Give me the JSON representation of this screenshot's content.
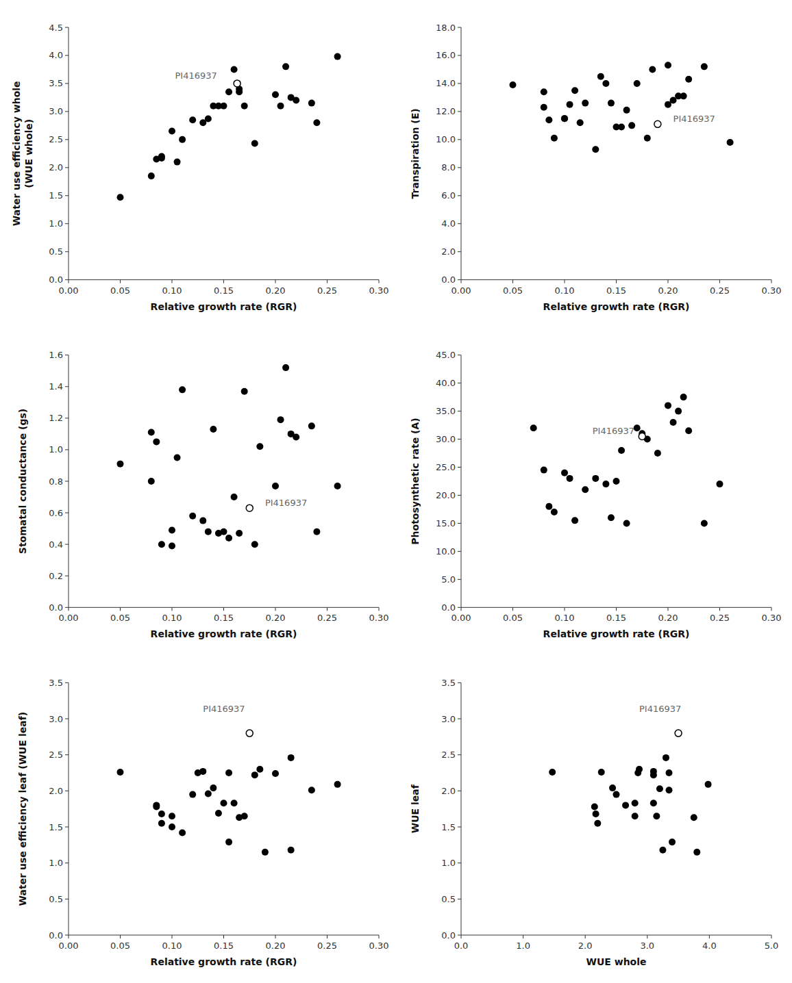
{
  "chart_data": [
    {
      "type": "scatter",
      "x_label": "Relative growth rate (RGR)",
      "y_label": "Water use efficiency whole\n(WUE whole)",
      "xlim": [
        0,
        0.3
      ],
      "ylim": [
        0,
        4.5
      ],
      "xticks": [
        {
          "value": 0,
          "label": "0.00"
        },
        0.05,
        {
          "value": 0.1,
          "label": "0.10"
        },
        0.15,
        {
          "value": 0.2,
          "label": "0.20"
        },
        0.25,
        {
          "value": 0.3,
          "label": "0.30"
        }
      ],
      "yticks": [
        {
          "value": 0,
          "label": "0.0"
        },
        0.5,
        {
          "value": 1,
          "label": "1.0"
        },
        1.5,
        {
          "value": 2,
          "label": "2.0"
        },
        2.5,
        {
          "value": 3,
          "label": "3.0"
        },
        3.5,
        {
          "value": 4,
          "label": "4.0"
        },
        4.5
      ],
      "grid": false,
      "series": [
        {
          "color": "black",
          "marker": "circle",
          "x": [
            0.05,
            0.08,
            0.085,
            0.09,
            0.09,
            0.1,
            0.105,
            0.11,
            0.12,
            0.13,
            0.135,
            0.14,
            0.145,
            0.15,
            0.155,
            0.16,
            0.165,
            0.165,
            0.17,
            0.18,
            0.2,
            0.205,
            0.21,
            0.215,
            0.22,
            0.235,
            0.24,
            0.26
          ],
          "values": [
            1.47,
            1.85,
            2.15,
            2.2,
            2.17,
            2.65,
            2.1,
            2.5,
            2.85,
            2.8,
            2.87,
            3.1,
            3.1,
            3.1,
            3.35,
            3.75,
            3.35,
            3.4,
            3.1,
            2.43,
            3.3,
            3.1,
            3.8,
            3.25,
            3.2,
            3.15,
            2.8,
            3.98
          ]
        },
        {
          "color": "black",
          "marker": "open_circle",
          "x": [
            0.163
          ],
          "values": [
            3.5
          ]
        }
      ],
      "annotations": [
        {
          "text": "PI416937",
          "x": 0.103,
          "y": 3.55,
          "color": "#666666"
        }
      ]
    },
    {
      "type": "scatter",
      "x_label": "Relative growth rate (RGR)",
      "y_label": "Transpiration (E)",
      "xlim": [
        0,
        0.3
      ],
      "ylim": [
        0,
        18.0
      ],
      "xticks": [
        {
          "value": 0,
          "label": "0.00"
        },
        0.05,
        {
          "value": 0.1,
          "label": "0.10"
        },
        0.15,
        {
          "value": 0.2,
          "label": "0.20"
        },
        0.25,
        {
          "value": 0.3,
          "label": "0.30"
        }
      ],
      "yticks": [
        {
          "value": 0,
          "label": "0.0"
        },
        {
          "value": 2,
          "label": "2.0"
        },
        {
          "value": 4,
          "label": "4.0"
        },
        {
          "value": 6,
          "label": "6.0"
        },
        {
          "value": 8,
          "label": "8.0"
        },
        {
          "value": 10,
          "label": "10.0"
        },
        {
          "value": 12,
          "label": "12.0"
        },
        {
          "value": 14,
          "label": "14.0"
        },
        {
          "value": 16,
          "label": "16.0"
        },
        {
          "value": 18,
          "label": "18.0"
        }
      ],
      "grid": false,
      "series": [
        {
          "color": "black",
          "marker": "circle",
          "x": [
            0.05,
            0.08,
            0.08,
            0.085,
            0.09,
            0.1,
            0.1,
            0.105,
            0.11,
            0.115,
            0.12,
            0.13,
            0.135,
            0.14,
            0.145,
            0.15,
            0.155,
            0.16,
            0.165,
            0.17,
            0.18,
            0.185,
            0.2,
            0.2,
            0.205,
            0.21,
            0.215,
            0.22,
            0.235,
            0.26
          ],
          "values": [
            13.9,
            13.4,
            12.3,
            11.4,
            10.1,
            11.5,
            11.5,
            12.5,
            13.5,
            11.2,
            12.6,
            9.3,
            14.5,
            14.0,
            12.6,
            10.9,
            10.9,
            12.1,
            11.0,
            14.0,
            10.1,
            15.0,
            12.5,
            15.3,
            12.8,
            13.1,
            13.1,
            14.3,
            15.2,
            9.8
          ]
        },
        {
          "color": "black",
          "marker": "open_circle",
          "x": [
            0.19
          ],
          "values": [
            11.1
          ]
        }
      ],
      "annotations": [
        {
          "text": "PI416937",
          "x": 0.205,
          "y": 11.1,
          "color": "#666666"
        }
      ]
    },
    {
      "type": "scatter",
      "x_label": "Relative growth rate (RGR)",
      "y_label": "Stomatal conductance (gs)",
      "xlim": [
        0,
        0.3
      ],
      "ylim": [
        0,
        1.6
      ],
      "xticks": [
        {
          "value": 0,
          "label": "0.00"
        },
        0.05,
        {
          "value": 0.1,
          "label": "0.10"
        },
        0.15,
        {
          "value": 0.2,
          "label": "0.20"
        },
        0.25,
        {
          "value": 0.3,
          "label": "0.30"
        }
      ],
      "yticks": [
        {
          "value": 0,
          "label": "0.0"
        },
        0.2,
        0.4,
        0.6,
        0.8,
        {
          "value": 1,
          "label": "1.0"
        },
        1.2,
        1.4,
        1.6
      ],
      "grid": false,
      "series": [
        {
          "color": "black",
          "marker": "circle",
          "x": [
            0.05,
            0.08,
            0.08,
            0.085,
            0.09,
            0.1,
            0.1,
            0.105,
            0.11,
            0.12,
            0.13,
            0.135,
            0.14,
            0.145,
            0.15,
            0.155,
            0.16,
            0.165,
            0.17,
            0.18,
            0.185,
            0.2,
            0.205,
            0.21,
            0.215,
            0.22,
            0.235,
            0.24,
            0.26
          ],
          "values": [
            0.91,
            1.11,
            0.8,
            1.05,
            0.4,
            0.49,
            0.39,
            0.95,
            1.38,
            0.58,
            0.55,
            0.48,
            1.13,
            0.47,
            0.48,
            0.44,
            0.7,
            0.47,
            1.37,
            0.4,
            1.02,
            0.77,
            1.19,
            1.52,
            1.1,
            1.08,
            1.15,
            0.48,
            0.77
          ]
        },
        {
          "color": "black",
          "marker": "open_circle",
          "x": [
            0.175
          ],
          "values": [
            0.63
          ]
        }
      ],
      "annotations": [
        {
          "text": "PI416937",
          "x": 0.19,
          "y": 0.63,
          "color": "#666666"
        }
      ]
    },
    {
      "type": "scatter",
      "x_label": "Relative growth rate (RGR)",
      "y_label": "Photosynthetic rate (A)",
      "xlim": [
        0,
        0.3
      ],
      "ylim": [
        0,
        45.0
      ],
      "xticks": [
        {
          "value": 0,
          "label": "0.00"
        },
        0.05,
        {
          "value": 0.1,
          "label": "0.10"
        },
        0.15,
        {
          "value": 0.2,
          "label": "0.20"
        },
        0.25,
        {
          "value": 0.3,
          "label": "0.30"
        }
      ],
      "yticks": [
        {
          "value": 0,
          "label": "0.0"
        },
        {
          "value": 5,
          "label": "5.0"
        },
        {
          "value": 10,
          "label": "10.0"
        },
        {
          "value": 15,
          "label": "15.0"
        },
        {
          "value": 20,
          "label": "20.0"
        },
        {
          "value": 25,
          "label": "25.0"
        },
        {
          "value": 30,
          "label": "30.0"
        },
        {
          "value": 35,
          "label": "35.0"
        },
        {
          "value": 40,
          "label": "40.0"
        },
        {
          "value": 45,
          "label": "45.0"
        }
      ],
      "grid": false,
      "series": [
        {
          "color": "black",
          "marker": "circle",
          "x": [
            0.07,
            0.08,
            0.085,
            0.09,
            0.1,
            0.105,
            0.11,
            0.12,
            0.13,
            0.14,
            0.145,
            0.15,
            0.155,
            0.16,
            0.17,
            0.175,
            0.18,
            0.19,
            0.2,
            0.205,
            0.21,
            0.215,
            0.22,
            0.235,
            0.25
          ],
          "values": [
            32.0,
            24.5,
            18.0,
            17.0,
            24.0,
            23.0,
            15.5,
            21.0,
            23.0,
            22.0,
            16.0,
            22.5,
            28.0,
            15.0,
            32.0,
            31.0,
            30.0,
            27.5,
            36.0,
            33.0,
            35.0,
            37.5,
            31.5,
            15.0,
            22.0
          ]
        },
        {
          "color": "black",
          "marker": "open_circle",
          "x": [
            0.175
          ],
          "values": [
            30.5
          ]
        }
      ],
      "annotations": [
        {
          "text": "PI416937",
          "x": 0.127,
          "y": 30.5,
          "color": "#666666"
        }
      ]
    },
    {
      "type": "scatter",
      "x_label": "Relative growth rate (RGR)",
      "y_label": "Water use efficiency leaf (WUE leaf)",
      "xlim": [
        0,
        0.3
      ],
      "ylim": [
        0,
        3.5
      ],
      "xticks": [
        {
          "value": 0,
          "label": "0.00"
        },
        0.05,
        {
          "value": 0.1,
          "label": "0.10"
        },
        0.15,
        {
          "value": 0.2,
          "label": "0.20"
        },
        0.25,
        {
          "value": 0.3,
          "label": "0.30"
        }
      ],
      "yticks": [
        {
          "value": 0,
          "label": "0.0"
        },
        0.5,
        {
          "value": 1,
          "label": "1.0"
        },
        1.5,
        {
          "value": 2,
          "label": "2.0"
        },
        2.5,
        {
          "value": 3,
          "label": "3.0"
        },
        3.5
      ],
      "grid": false,
      "series": [
        {
          "color": "black",
          "marker": "circle",
          "x": [
            0.05,
            0.085,
            0.085,
            0.09,
            0.09,
            0.1,
            0.1,
            0.11,
            0.12,
            0.125,
            0.13,
            0.135,
            0.14,
            0.145,
            0.15,
            0.155,
            0.155,
            0.16,
            0.165,
            0.17,
            0.175,
            0.18,
            0.185,
            0.19,
            0.2,
            0.215,
            0.215,
            0.235,
            0.26
          ],
          "values": [
            2.26,
            1.78,
            1.8,
            1.55,
            1.68,
            1.5,
            1.65,
            1.42,
            1.95,
            2.25,
            2.27,
            1.96,
            2.04,
            1.69,
            1.83,
            2.25,
            1.29,
            1.83,
            1.63,
            1.65,
            2.8,
            2.22,
            2.3,
            1.15,
            2.24,
            1.18,
            2.46,
            2.01,
            2.09
          ]
        },
        {
          "color": "black",
          "marker": "open_circle",
          "x": [
            0.175
          ],
          "values": [
            2.8
          ]
        }
      ],
      "annotations": [
        {
          "text": "PI416937",
          "x": 0.13,
          "y": 3.07,
          "color": "#666666"
        }
      ]
    },
    {
      "type": "scatter",
      "x_label": "WUE whole",
      "y_label": "WUE leaf",
      "xlim": [
        0,
        5.0
      ],
      "ylim": [
        0,
        3.5
      ],
      "xticks": [
        {
          "value": 0,
          "label": "0.0"
        },
        {
          "value": 1,
          "label": "1.0"
        },
        {
          "value": 2,
          "label": "2.0"
        },
        {
          "value": 3,
          "label": "3.0"
        },
        {
          "value": 4,
          "label": "4.0"
        },
        {
          "value": 5,
          "label": "5.0"
        }
      ],
      "yticks": [
        {
          "value": 0,
          "label": "0.0"
        },
        0.5,
        {
          "value": 1,
          "label": "1.0"
        },
        1.5,
        {
          "value": 2,
          "label": "2.0"
        },
        2.5,
        {
          "value": 3,
          "label": "3.0"
        },
        3.5
      ],
      "grid": false,
      "series": [
        {
          "color": "black",
          "marker": "circle",
          "x": [
            1.47,
            2.15,
            2.17,
            2.2,
            2.26,
            2.44,
            2.5,
            2.65,
            2.8,
            2.8,
            2.85,
            2.87,
            3.1,
            3.1,
            3.1,
            3.15,
            3.2,
            3.25,
            3.3,
            3.35,
            3.35,
            3.4,
            3.75,
            3.8,
            3.98
          ],
          "values": [
            2.26,
            1.78,
            1.68,
            1.55,
            2.26,
            2.04,
            1.95,
            1.8,
            1.83,
            1.65,
            2.25,
            2.3,
            2.27,
            1.83,
            2.22,
            1.65,
            2.03,
            1.18,
            2.46,
            2.01,
            2.25,
            1.29,
            1.63,
            1.15,
            2.09
          ]
        },
        {
          "color": "black",
          "marker": "open_circle",
          "x": [
            3.5
          ],
          "values": [
            2.8
          ]
        }
      ],
      "annotations": [
        {
          "text": "PI416937",
          "x": 2.87,
          "y": 3.07,
          "color": "#666666"
        }
      ]
    }
  ]
}
